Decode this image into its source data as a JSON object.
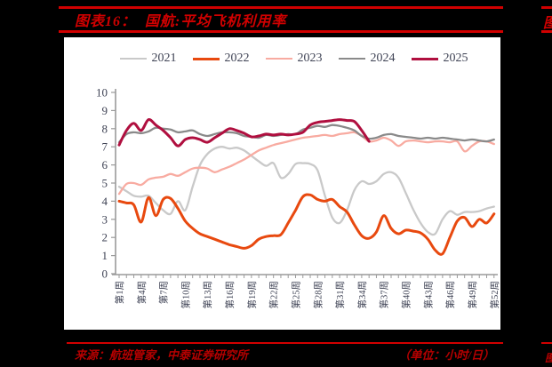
{
  "header": {
    "label": "图表16：",
    "title": "国航:平均飞机利用率"
  },
  "footer": {
    "source": "来源：航班管家，中泰证券研究所",
    "unit": "（单位：小时/日）",
    "adjacent_fragment": "图"
  },
  "colors": {
    "accent_red": "#d10000",
    "footer_red": "#b50000",
    "background": "#000000",
    "panel": "#ffffff",
    "axis": "#9a9a9a",
    "label": "#3e4254"
  },
  "chart_data": {
    "type": "line",
    "title": "国航:平均飞机利用率",
    "y_unit": "小时/日",
    "ylim": [
      0,
      10
    ],
    "y_ticks": [
      0,
      1,
      2,
      3,
      4,
      5,
      6,
      7,
      8,
      9,
      10
    ],
    "x_range_weeks": [
      1,
      52
    ],
    "x_tick_step": 3,
    "x_tick_labels": [
      "第1周",
      "第4周",
      "第7周",
      "第10周",
      "第13周",
      "第16周",
      "第19周",
      "第22周",
      "第25周",
      "第28周",
      "第31周",
      "第34周",
      "第37周",
      "第40周",
      "第43周",
      "第46周",
      "第49周",
      "第52周"
    ],
    "grid": false,
    "legend_position": "top",
    "series": [
      {
        "name": "2021",
        "color": "#c9c9c9",
        "width": 2.3,
        "start_week": 1,
        "values": [
          4.8,
          4.55,
          4.3,
          4.25,
          4.3,
          3.9,
          3.5,
          3.3,
          4.0,
          3.5,
          4.8,
          6.0,
          6.6,
          6.9,
          7.0,
          6.9,
          6.95,
          6.8,
          6.5,
          6.2,
          5.95,
          6.1,
          5.3,
          5.5,
          6.05,
          6.1,
          6.05,
          5.7,
          4.3,
          3.1,
          2.8,
          3.5,
          4.6,
          5.1,
          4.95,
          5.1,
          5.5,
          5.6,
          5.3,
          4.45,
          3.55,
          2.8,
          2.3,
          2.2,
          3.0,
          3.45,
          3.25,
          3.4,
          3.4,
          3.45,
          3.6,
          3.7
        ]
      },
      {
        "name": "2022",
        "color": "#e8490f",
        "width": 3.0,
        "start_week": 1,
        "values": [
          4.0,
          3.9,
          3.8,
          2.85,
          4.2,
          3.2,
          4.1,
          4.15,
          3.6,
          2.9,
          2.5,
          2.2,
          2.05,
          1.9,
          1.75,
          1.6,
          1.5,
          1.4,
          1.55,
          1.9,
          2.05,
          2.1,
          2.15,
          2.8,
          3.5,
          4.25,
          4.35,
          4.1,
          4.0,
          4.1,
          3.7,
          3.4,
          2.7,
          2.1,
          1.95,
          2.3,
          3.2,
          2.5,
          2.2,
          2.4,
          2.35,
          2.25,
          1.9,
          1.3,
          1.1,
          2.0,
          2.9,
          3.1,
          2.6,
          3.0,
          2.8,
          3.3
        ]
      },
      {
        "name": "2023",
        "color": "#f8aba1",
        "width": 2.3,
        "start_week": 1,
        "values": [
          4.4,
          4.95,
          5.0,
          4.9,
          5.2,
          5.3,
          5.35,
          5.5,
          5.4,
          5.6,
          5.8,
          5.85,
          5.8,
          5.6,
          5.75,
          5.9,
          6.1,
          6.3,
          6.55,
          6.8,
          6.95,
          7.1,
          7.2,
          7.3,
          7.4,
          7.5,
          7.55,
          7.6,
          7.65,
          7.6,
          7.7,
          7.75,
          7.8,
          7.6,
          7.3,
          7.35,
          7.5,
          7.35,
          7.05,
          7.3,
          7.35,
          7.3,
          7.25,
          7.3,
          7.3,
          7.25,
          7.3,
          6.75,
          7.05,
          7.3,
          7.3,
          7.15
        ]
      },
      {
        "name": "2024",
        "color": "#8a8a8a",
        "width": 2.3,
        "start_week": 1,
        "values": [
          7.25,
          7.7,
          7.8,
          7.75,
          7.85,
          8.05,
          8.0,
          7.95,
          7.8,
          7.85,
          7.9,
          7.7,
          7.6,
          7.7,
          7.8,
          7.8,
          7.75,
          7.6,
          7.55,
          7.5,
          7.65,
          7.6,
          7.65,
          7.7,
          7.7,
          7.95,
          8.05,
          8.15,
          8.1,
          8.2,
          8.15,
          8.05,
          7.9,
          7.6,
          7.45,
          7.5,
          7.65,
          7.7,
          7.6,
          7.55,
          7.5,
          7.45,
          7.5,
          7.45,
          7.5,
          7.45,
          7.4,
          7.35,
          7.4,
          7.35,
          7.3,
          7.4
        ]
      },
      {
        "name": "2025",
        "color": "#b00f3f",
        "width": 3.0,
        "start_week": 1,
        "values": [
          7.1,
          7.9,
          8.3,
          7.9,
          8.5,
          8.2,
          7.9,
          7.5,
          7.05,
          7.4,
          7.5,
          7.4,
          7.25,
          7.5,
          7.75,
          8.0,
          7.9,
          7.75,
          7.55,
          7.6,
          7.7,
          7.65,
          7.7,
          7.65,
          7.7,
          7.8,
          8.2,
          8.35,
          8.4,
          8.45,
          8.5,
          8.45,
          8.4,
          7.9,
          7.3
        ]
      }
    ]
  }
}
